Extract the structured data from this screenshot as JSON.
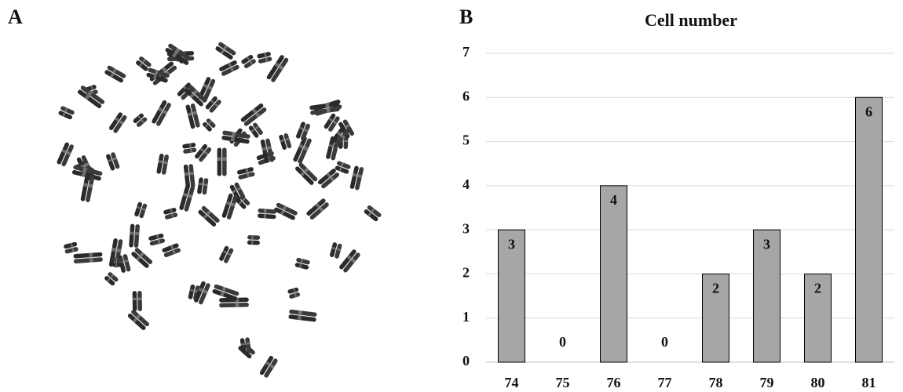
{
  "panels": {
    "a_label": "A",
    "b_label": "B"
  },
  "chart_data": {
    "type": "bar",
    "title": "Cell number",
    "categories": [
      "74",
      "75",
      "76",
      "77",
      "78",
      "79",
      "80",
      "81"
    ],
    "values": [
      3,
      0,
      4,
      0,
      2,
      3,
      2,
      6
    ],
    "color": "#a6a6a6",
    "ylim": [
      0,
      7
    ],
    "yticks": [
      0,
      1,
      2,
      3,
      4,
      5,
      6,
      7
    ],
    "grid": true
  }
}
